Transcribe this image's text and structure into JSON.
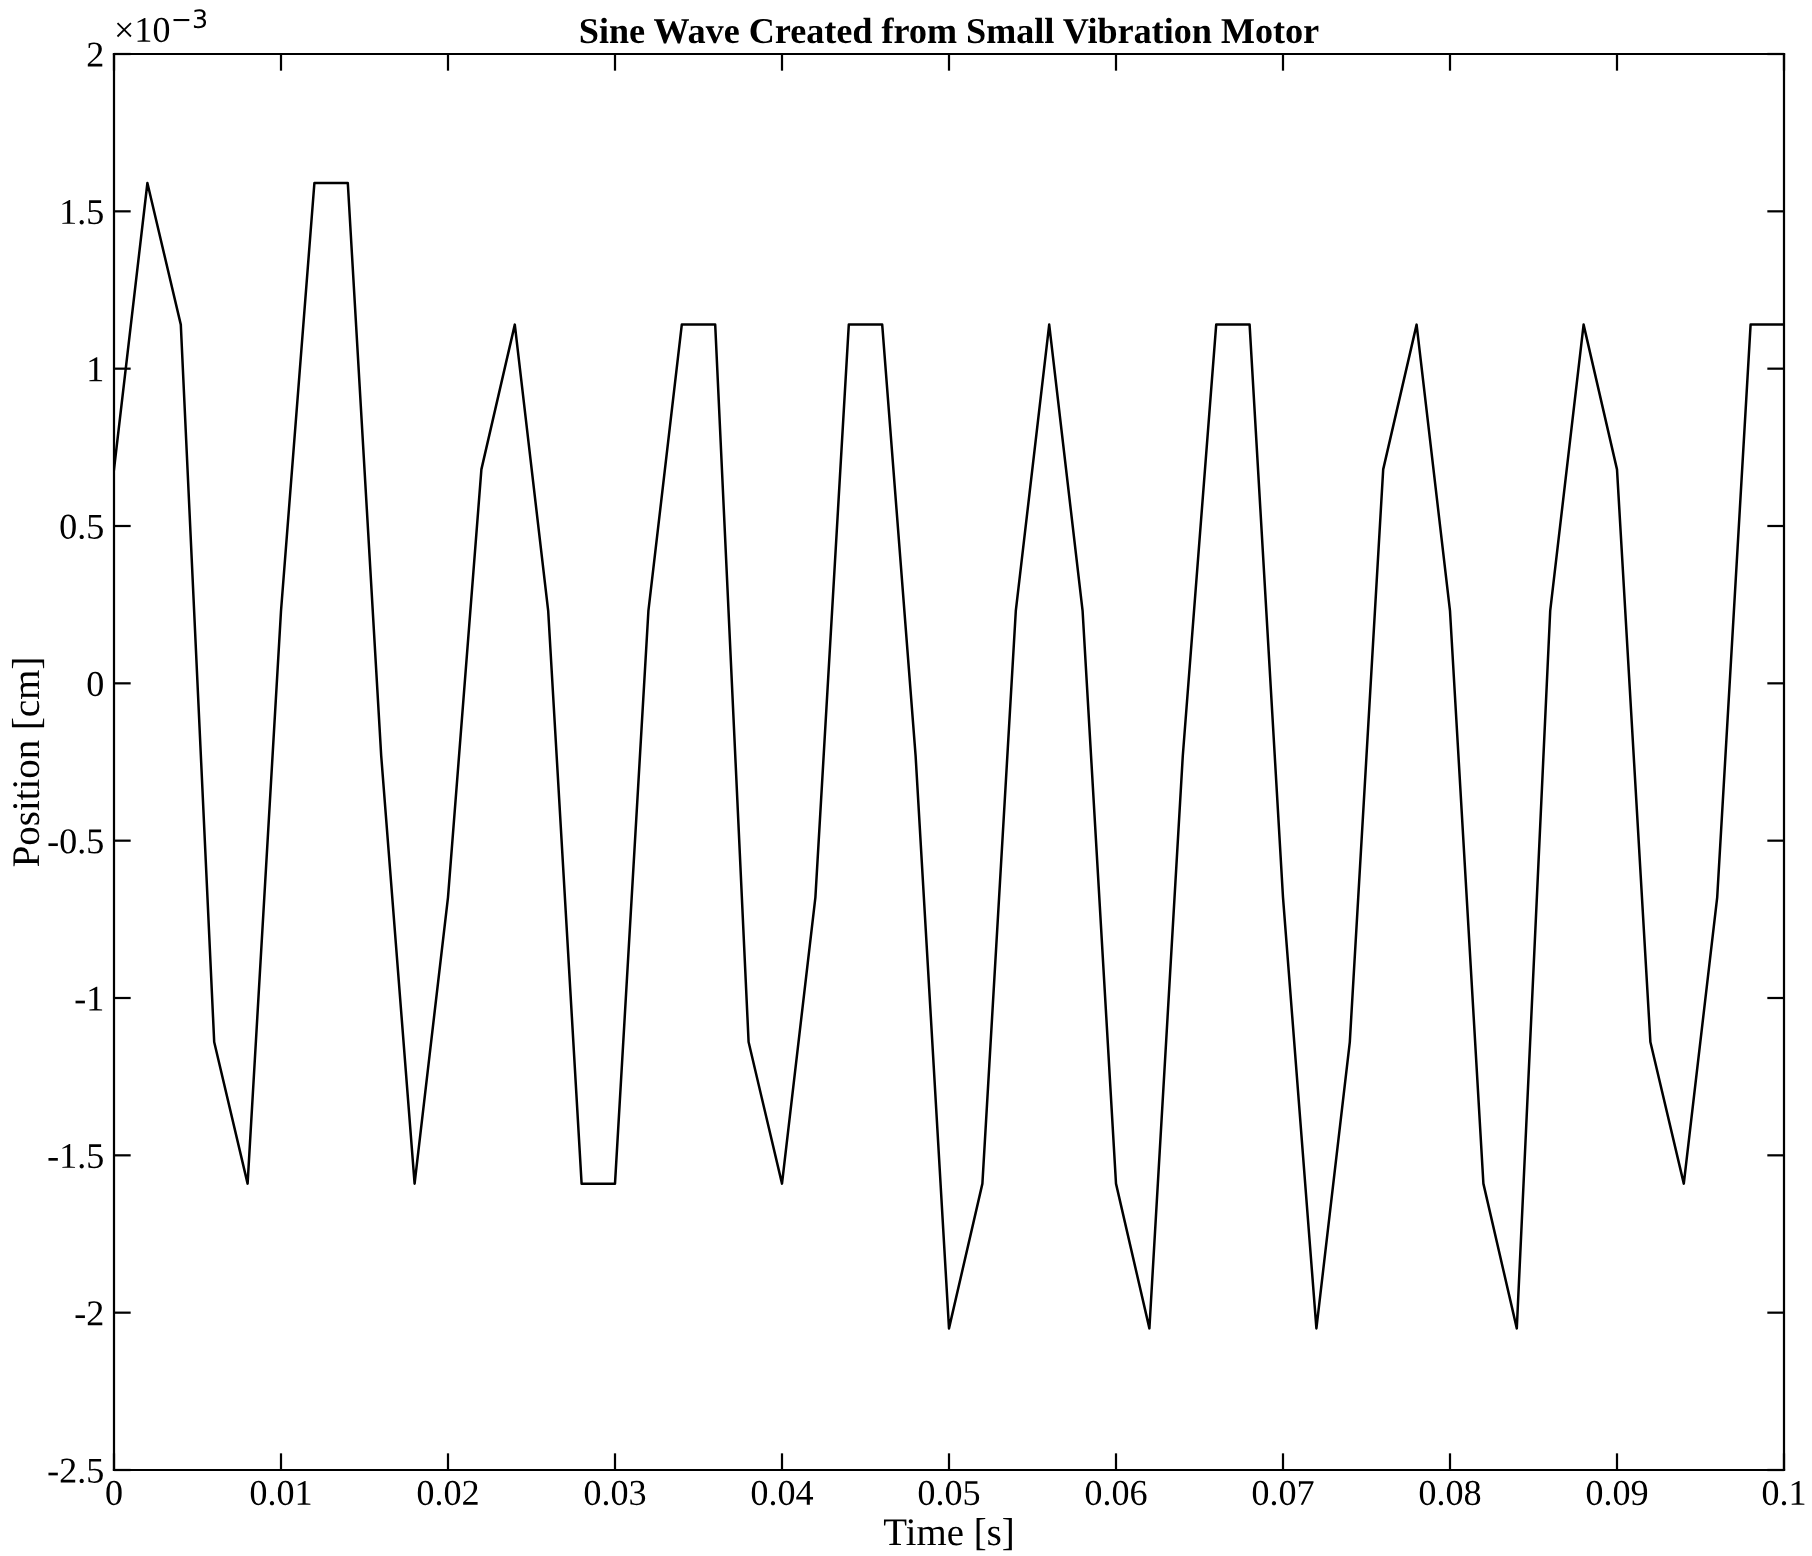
{
  "chart_data": {
    "type": "line",
    "title": "Sine Wave Created from Small Vibration Motor",
    "xlabel": "Time [s]",
    "ylabel": "Position [cm]",
    "annotations": [
      "×10$^{−3}$"
    ],
    "x": [
      0,
      0.002,
      0.004,
      0.006,
      0.008,
      0.01,
      0.012,
      0.014,
      0.016,
      0.018,
      0.02,
      0.022,
      0.024,
      0.026,
      0.028,
      0.03,
      0.032,
      0.034,
      0.036,
      0.038,
      0.04,
      0.042,
      0.044,
      0.046,
      0.048,
      0.05,
      0.052,
      0.054,
      0.056,
      0.058,
      0.06,
      0.062,
      0.064,
      0.066,
      0.068,
      0.07,
      0.072,
      0.074,
      0.076,
      0.078,
      0.08,
      0.082,
      0.084,
      0.086,
      0.088,
      0.09,
      0.092,
      0.094,
      0.096,
      0.098,
      0.1
    ],
    "series": [
      {
        "color": "#000000",
        "values": [
          0.68,
          1.59,
          1.14,
          -1.14,
          -1.59,
          0.23,
          1.59,
          1.59,
          -0.23,
          -1.59,
          -0.68,
          0.68,
          1.14,
          0.23,
          -1.59,
          -1.59,
          0.23,
          1.14,
          1.14,
          -1.14,
          -1.59,
          -0.68,
          1.14,
          1.14,
          -0.23,
          -2.05,
          -1.59,
          0.23,
          1.14,
          0.23,
          -1.59,
          -2.05,
          -0.23,
          1.14,
          1.14,
          -0.68,
          -2.05,
          -1.14,
          0.68,
          1.14,
          0.23,
          -1.59,
          -2.05,
          0.23,
          1.14,
          0.68,
          -1.14,
          -1.59,
          -0.68,
          1.14,
          1.14
        ]
      }
    ],
    "xlim": [
      0,
      0.1
    ],
    "xticks": [
      0,
      0.01,
      0.02,
      0.03,
      0.04,
      0.05,
      0.06,
      0.07,
      0.08,
      0.09,
      0.1
    ],
    "ylim": [
      -2.5,
      2
    ],
    "yticks": [
      -2.5,
      -2,
      -1.5,
      -1,
      -0.5,
      0,
      0.5,
      1,
      1.5,
      2
    ],
    "grid": false,
    "legend": false,
    "marker": "none",
    "line_style": "solid"
  }
}
